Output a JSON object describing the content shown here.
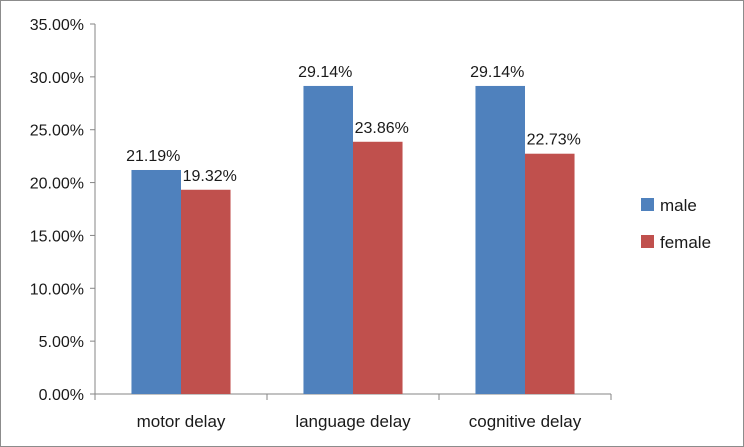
{
  "chart_data": {
    "type": "bar",
    "categories": [
      "motor delay",
      "language delay",
      "cognitive delay"
    ],
    "series": [
      {
        "name": "male",
        "values": [
          21.19,
          29.14,
          29.14
        ],
        "labels": [
          "21.19%",
          "29.14%",
          "29.14%"
        ],
        "color": "#4f81bd"
      },
      {
        "name": "female",
        "values": [
          19.32,
          23.86,
          22.73
        ],
        "labels": [
          "19.32%",
          "23.86%",
          "22.73%"
        ],
        "color": "#c0504d"
      }
    ],
    "ylim": [
      0,
      35
    ],
    "yticks": [
      0,
      5,
      10,
      15,
      20,
      25,
      30,
      35
    ],
    "ytick_labels": [
      "0.00%",
      "5.00%",
      "10.00%",
      "15.00%",
      "20.00%",
      "25.00%",
      "30.00%",
      "35.00%"
    ],
    "grid": false,
    "legend_position": "right",
    "title": "",
    "xlabel": "",
    "ylabel": ""
  }
}
